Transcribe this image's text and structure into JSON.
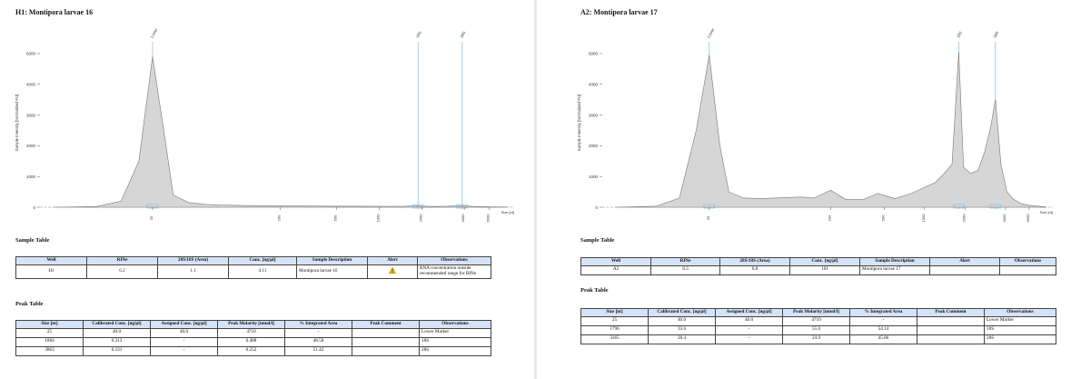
{
  "panels": [
    {
      "title": "H1: Montipora larvae 16",
      "sample_table": {
        "heading": "Sample Table",
        "columns": [
          "Well",
          "RINe",
          "28S/18S (Area)",
          "Conc. [ng/µl]",
          "Sample Description",
          "Alert",
          "Observations"
        ],
        "row": {
          "well": "H1",
          "rine": "6.2",
          "ratio": "1.1",
          "conc": "4.11",
          "description": "Montipora larvae 16",
          "alert_icon": "warning-triangle-icon",
          "observations": "RNA concentration outside recommended range for RINe"
        }
      },
      "peak_table": {
        "heading": "Peak Table",
        "columns": [
          "Size [nt]",
          "Calibrated Conc. [ng/µl]",
          "Assigned Conc. [ng/µl]",
          "Peak Molarity [nmol/l]",
          "% Integrated Area",
          "Peak Comment",
          "Observations"
        ],
        "rows": [
          {
            "size": "25",
            "cal": "40.0",
            "assigned": "40.0",
            "molarity": "4710",
            "area": "-",
            "comment": "",
            "obs": "Lower Marker"
          },
          {
            "size": "1884",
            "cal": "0.313",
            "assigned": "-",
            "molarity": "0.488",
            "area": "48.58",
            "comment": "",
            "obs": "18S"
          },
          {
            "size": "3863",
            "cal": "0.331",
            "assigned": "-",
            "molarity": "0.252",
            "area": "51.42",
            "comment": "",
            "obs": "28S"
          }
        ]
      }
    },
    {
      "title": "A2: Montipora larvae 17",
      "sample_table": {
        "heading": "Sample Table",
        "columns": [
          "Well",
          "RINe",
          "28S/18S (Area)",
          "Conc. [ng/µl]",
          "Sample Description",
          "Alert",
          "Observations"
        ],
        "row": {
          "well": "A2",
          "rine": "8.3",
          "ratio": "0.8",
          "conc": "101",
          "description": "Montipora larvae 17",
          "alert_icon": "",
          "observations": ""
        }
      },
      "peak_table": {
        "heading": "Peak Table",
        "columns": [
          "Size [nt]",
          "Calibrated Conc. [ng/µl]",
          "Assigned Conc. [ng/µl]",
          "Peak Molarity [nmol/l]",
          "% Integrated Area",
          "Peak Comment",
          "Observations"
        ],
        "rows": [
          {
            "size": "25",
            "cal": "40.0",
            "assigned": "40.0",
            "molarity": "4710",
            "area": "-",
            "comment": "",
            "obs": "Lower Marker"
          },
          {
            "size": "1796",
            "cal": "33.6",
            "assigned": "-",
            "molarity": "55.0",
            "area": "54.14",
            "comment": "",
            "obs": "18S"
          },
          {
            "size": "3365",
            "cal": "28.4",
            "assigned": "-",
            "molarity": "24.9",
            "area": "45.86",
            "comment": "",
            "obs": "28S"
          }
        ]
      }
    }
  ],
  "chart_data": [
    {
      "type": "area",
      "ylabel": "Sample Intensity [Normalized FU]",
      "xlabel": "Size [nt]",
      "ylim": [
        0,
        5500
      ],
      "yticks": [
        0,
        1000,
        2000,
        3000,
        4000,
        5000
      ],
      "xticks": [
        "25",
        "200",
        "500",
        "1000",
        "2000",
        "4000",
        "6000"
      ],
      "marker_labels": [
        "Lower",
        "18S",
        "28S"
      ],
      "marker_positions_nt": [
        25,
        1884,
        3863
      ],
      "series": [
        {
          "x": [
            5,
            10,
            15,
            20,
            25,
            30,
            35,
            45,
            60,
            80,
            120,
            200,
            400,
            700,
            1000,
            1500,
            1884,
            2300,
            3000,
            3863,
            4500,
            6000,
            8000
          ],
          "y": [
            0,
            20,
            200,
            1500,
            4900,
            2500,
            400,
            150,
            90,
            70,
            55,
            45,
            35,
            30,
            28,
            30,
            45,
            25,
            30,
            50,
            28,
            15,
            5
          ]
        }
      ]
    },
    {
      "type": "area",
      "ylabel": "Sample Intensity [Normalized FU]",
      "xlabel": "Size [nt]",
      "ylim": [
        0,
        5500
      ],
      "yticks": [
        0,
        1000,
        2000,
        3000,
        4000,
        5000
      ],
      "xticks": [
        "25",
        "200",
        "500",
        "1000",
        "2000",
        "4000",
        "6000"
      ],
      "marker_labels": [
        "Lower",
        "18S",
        "28S"
      ],
      "marker_positions_nt": [
        25,
        1796,
        3365
      ],
      "series": [
        {
          "x": [
            5,
            10,
            15,
            20,
            25,
            30,
            35,
            45,
            60,
            80,
            100,
            120,
            150,
            200,
            260,
            350,
            450,
            600,
            800,
            1000,
            1200,
            1400,
            1600,
            1796,
            1950,
            2200,
            2500,
            2800,
            3100,
            3365,
            3700,
            4100,
            4600,
            5200,
            6000,
            8000
          ],
          "y": [
            0,
            30,
            300,
            2500,
            4950,
            2000,
            500,
            300,
            280,
            300,
            320,
            330,
            300,
            550,
            250,
            250,
            450,
            280,
            450,
            650,
            800,
            1100,
            1400,
            5050,
            1300,
            1100,
            1200,
            1800,
            2600,
            3500,
            1400,
            500,
            250,
            120,
            60,
            10
          ]
        }
      ]
    }
  ]
}
